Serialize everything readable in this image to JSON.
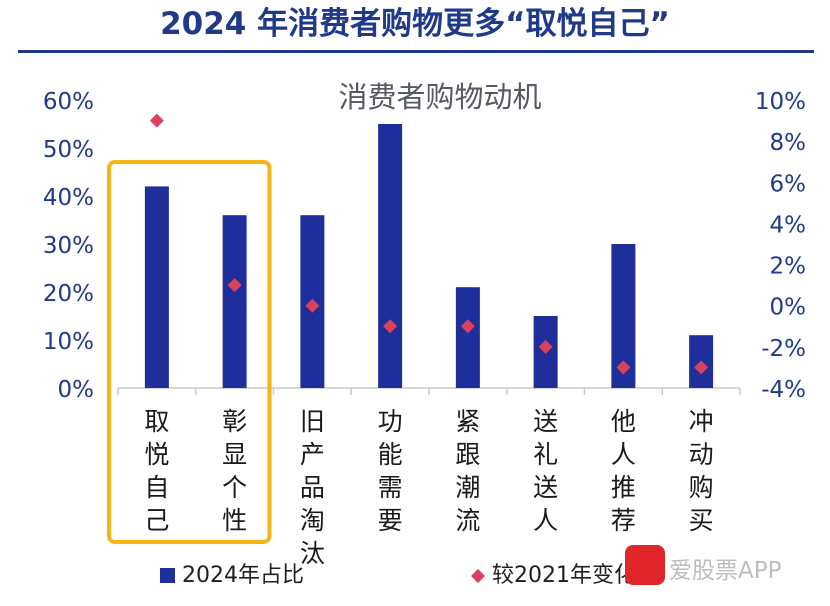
{
  "title": "2024 年消费者购物更多“取悦自己”",
  "watermark": {
    "text": "爱股票APP",
    "logo_color": "#e0262b"
  },
  "colors": {
    "bar": "#1e2f9c",
    "diamond": "#d9425a",
    "highlight": "#f6b516",
    "axis_text": "#1f3a8a"
  },
  "chart_data": {
    "type": "bar",
    "title": "消费者购物动机",
    "categories": [
      "取悦自己",
      "彰显个性",
      "旧产品淘汰",
      "功能需要",
      "紧跟潮流",
      "送礼送人",
      "他人推荐",
      "冲动购买"
    ],
    "series": [
      {
        "name": "2024年占比",
        "type": "bar",
        "axis": "left",
        "values": [
          42,
          36,
          36,
          55,
          21,
          15,
          30,
          11
        ]
      },
      {
        "name": "较2021年变化",
        "type": "scatter",
        "marker": "diamond",
        "axis": "right",
        "values": [
          9,
          1,
          0,
          -1,
          -1,
          -2,
          -3,
          -3
        ]
      }
    ],
    "y_left": {
      "ticks": [
        "0%",
        "10%",
        "20%",
        "30%",
        "40%",
        "50%",
        "60%"
      ],
      "ylim": [
        0,
        60
      ]
    },
    "y_right": {
      "ticks": [
        "-4%",
        "-2%",
        "0%",
        "2%",
        "4%",
        "6%",
        "8%",
        "10%"
      ],
      "ylim": [
        -4,
        10
      ]
    },
    "legend": {
      "position": "bottom",
      "items": [
        "2024年占比",
        "较2021年变化"
      ]
    },
    "grid": false,
    "highlight_categories": [
      "取悦自己",
      "彰显个性"
    ]
  }
}
